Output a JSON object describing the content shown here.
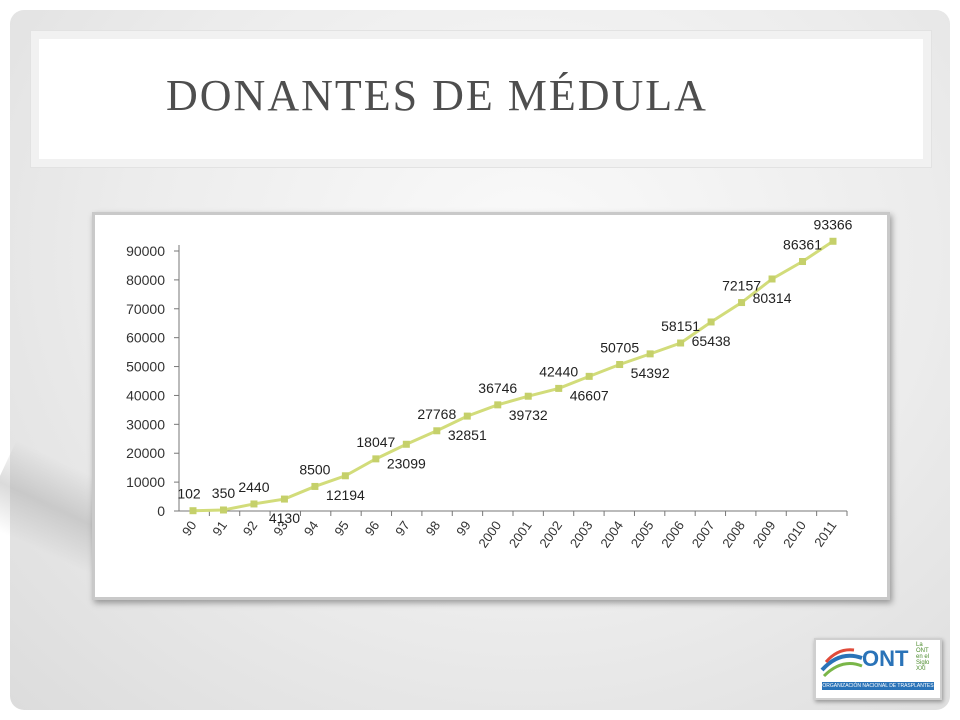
{
  "slide": {
    "title": "DONANTES DE MÉDULA"
  },
  "logo": {
    "name": "ONT",
    "tagline": "ORGANIZACIÓN NACIONAL DE TRASPLANTES",
    "side_text": "La ONT en el Siglo XXI"
  },
  "colors": {
    "line": "#d2dc7a",
    "marker": "#c5d06a",
    "axis": "#777777",
    "title": "#4e4e4e"
  },
  "chart_data": {
    "type": "line",
    "title": "",
    "xlabel": "",
    "ylabel": "",
    "categories": [
      "90",
      "91",
      "92",
      "93",
      "94",
      "95",
      "96",
      "97",
      "98",
      "99",
      "2000",
      "2001",
      "2002",
      "2003",
      "2004",
      "2005",
      "2006",
      "2007",
      "2008",
      "2009",
      "2010",
      "2011"
    ],
    "values": [
      102,
      350,
      2440,
      4130,
      8500,
      12194,
      18047,
      23099,
      27768,
      32851,
      36746,
      39732,
      42440,
      46607,
      50705,
      54392,
      58151,
      65438,
      72157,
      80314,
      86361,
      93366
    ],
    "label_position": [
      "above",
      "above",
      "above",
      "below",
      "above",
      "below",
      "above",
      "below",
      "above",
      "below",
      "above",
      "below",
      "above",
      "below",
      "above",
      "below",
      "above",
      "below",
      "above",
      "below",
      "above",
      "above"
    ],
    "ylim": [
      0,
      90000
    ],
    "yticks": [
      0,
      10000,
      20000,
      30000,
      40000,
      50000,
      60000,
      70000,
      80000,
      90000
    ],
    "grid": false,
    "legend": "none"
  }
}
